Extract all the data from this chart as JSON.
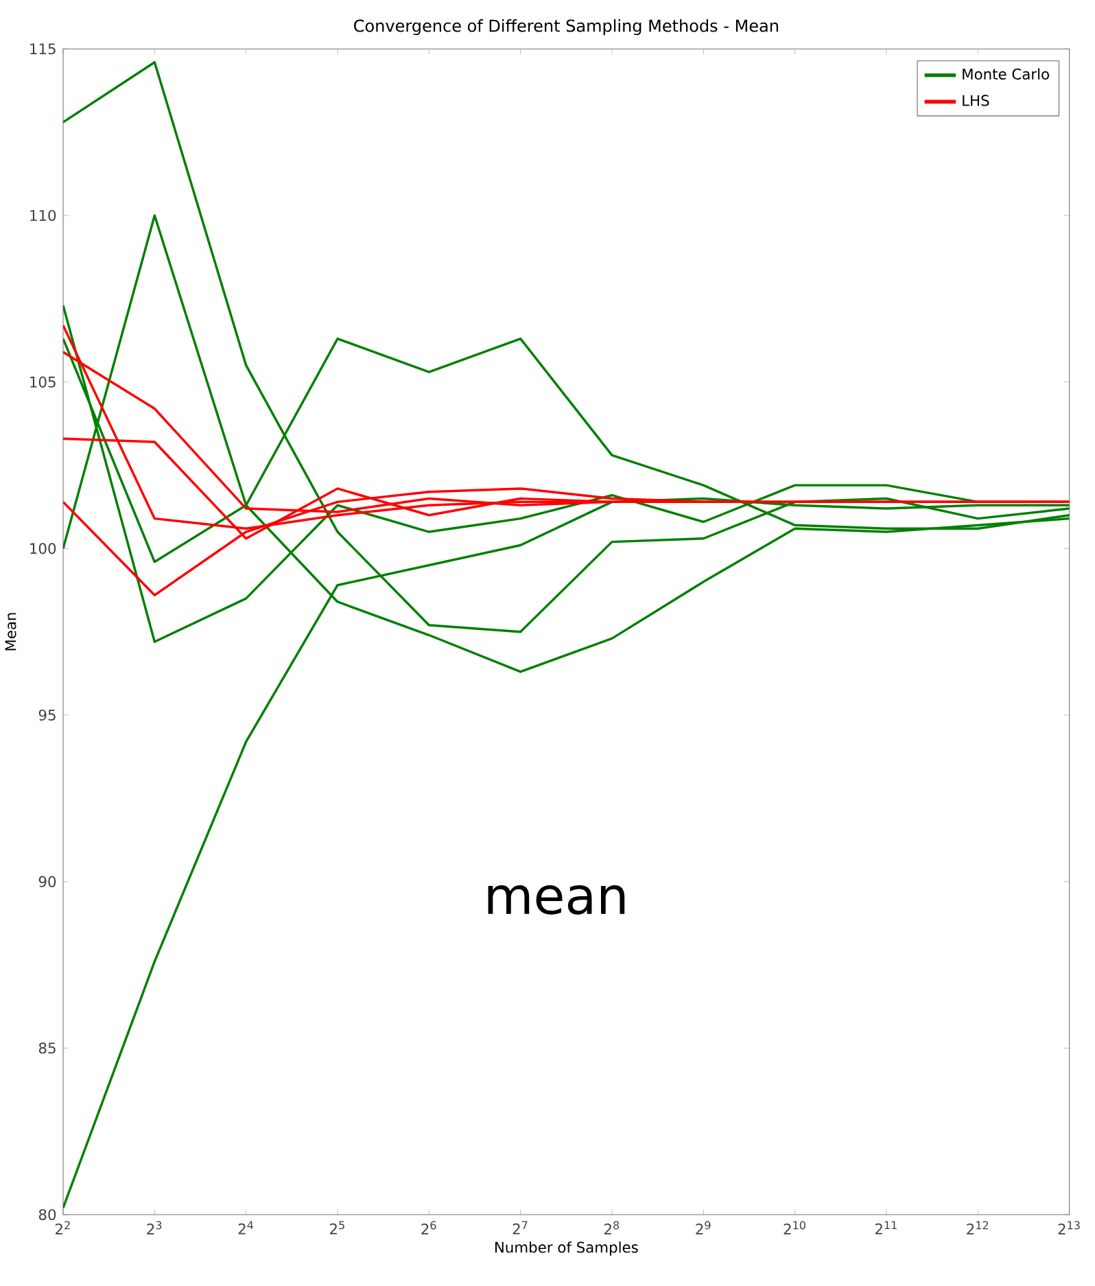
{
  "chart_data": {
    "type": "line",
    "title": "Convergence of Different Sampling Methods - Mean",
    "xlabel": "Number of Samples",
    "ylabel": "Mean",
    "annotations": [
      "mean"
    ],
    "x": [
      4,
      8,
      16,
      32,
      64,
      128,
      256,
      512,
      1024,
      2048,
      4096,
      8192
    ],
    "log": "x",
    "xlim": [
      4,
      8192
    ],
    "ylim": [
      80,
      115
    ],
    "xticks": [
      {
        "value": 4,
        "label": "2$^{2}$"
      },
      {
        "value": 8,
        "label": "2$^{3}$"
      },
      {
        "value": 16,
        "label": "2$^{4}$"
      },
      {
        "value": 32,
        "label": "2$^{5}$"
      },
      {
        "value": 64,
        "label": "2$^{6}$"
      },
      {
        "value": 128,
        "label": "2$^{7}$"
      },
      {
        "value": 256,
        "label": "2$^{8}$"
      },
      {
        "value": 512,
        "label": "2$^{9}$"
      },
      {
        "value": 1024,
        "label": "2$^{10}$"
      },
      {
        "value": 2048,
        "label": "2$^{11}$"
      },
      {
        "value": 4096,
        "label": "2$^{12}$"
      },
      {
        "value": 8192,
        "label": "2$^{13}$"
      }
    ],
    "yticks": [
      80,
      85,
      90,
      95,
      100,
      105,
      110,
      115
    ],
    "legend": "top right",
    "series": [
      {
        "name": "Monte Carlo",
        "color": "#008000",
        "values": [
          112.8,
          114.6,
          105.5,
          100.5,
          97.7,
          97.5,
          100.2,
          100.3,
          101.4,
          101.5,
          100.9,
          101.2
        ]
      },
      {
        "color": "#008000",
        "values": [
          80.2,
          87.6,
          94.2,
          98.9,
          99.5,
          100.1,
          101.4,
          101.5,
          101.3,
          101.2,
          101.3,
          101.3
        ]
      },
      {
        "color": "#008000",
        "values": [
          100.0,
          110.0,
          101.3,
          98.4,
          97.4,
          96.3,
          97.3,
          99.0,
          100.6,
          100.5,
          100.7,
          100.9
        ]
      },
      {
        "color": "#008000",
        "values": [
          106.3,
          99.6,
          101.3,
          106.3,
          105.3,
          106.3,
          102.8,
          101.9,
          100.7,
          100.6,
          100.6,
          101.0
        ]
      },
      {
        "color": "#008000",
        "values": [
          107.3,
          97.2,
          98.5,
          101.3,
          100.5,
          100.9,
          101.6,
          100.8,
          101.9,
          101.9,
          101.4,
          101.4
        ]
      },
      {
        "name": "LHS",
        "color": "#ff0000",
        "values": [
          106.7,
          100.9,
          100.6,
          101.0,
          101.3,
          101.4,
          101.4,
          101.4,
          101.4,
          101.4,
          101.4,
          101.4
        ]
      },
      {
        "color": "#ff0000",
        "values": [
          105.9,
          104.2,
          101.2,
          101.1,
          101.5,
          101.3,
          101.4,
          101.4,
          101.4,
          101.4,
          101.4,
          101.4
        ]
      },
      {
        "color": "#ff0000",
        "values": [
          103.3,
          103.2,
          100.3,
          101.8,
          101.0,
          101.5,
          101.4,
          101.4,
          101.4,
          101.4,
          101.4,
          101.4
        ]
      },
      {
        "color": "#ff0000",
        "values": [
          101.4,
          98.6,
          100.5,
          101.4,
          101.7,
          101.8,
          101.5,
          101.4,
          101.4,
          101.4,
          101.4,
          101.4
        ]
      }
    ]
  }
}
